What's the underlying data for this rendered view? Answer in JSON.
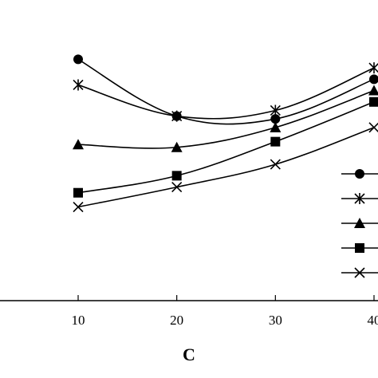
{
  "chart_data": {
    "type": "line",
    "title": "",
    "xlabel": "C",
    "ylabel": "",
    "x": [
      10,
      20,
      30,
      40
    ],
    "xticks": [
      "10",
      "20",
      "30",
      "40"
    ],
    "xlim": [
      0,
      40
    ],
    "ylim": [
      0,
      1
    ],
    "grid": false,
    "legend_position": "right",
    "colors": {
      "line": "#000000",
      "background": "#ffffff"
    },
    "series": [
      {
        "marker": "circle",
        "values": [
          0.85,
          0.65,
          0.64,
          0.78
        ]
      },
      {
        "marker": "asterisk",
        "values": [
          0.76,
          0.65,
          0.67,
          0.82
        ]
      },
      {
        "marker": "triangle",
        "values": [
          0.55,
          0.54,
          0.61,
          0.74
        ]
      },
      {
        "marker": "square",
        "values": [
          0.38,
          0.44,
          0.56,
          0.7
        ]
      },
      {
        "marker": "cross",
        "values": [
          0.33,
          0.4,
          0.48,
          0.61
        ]
      }
    ]
  }
}
